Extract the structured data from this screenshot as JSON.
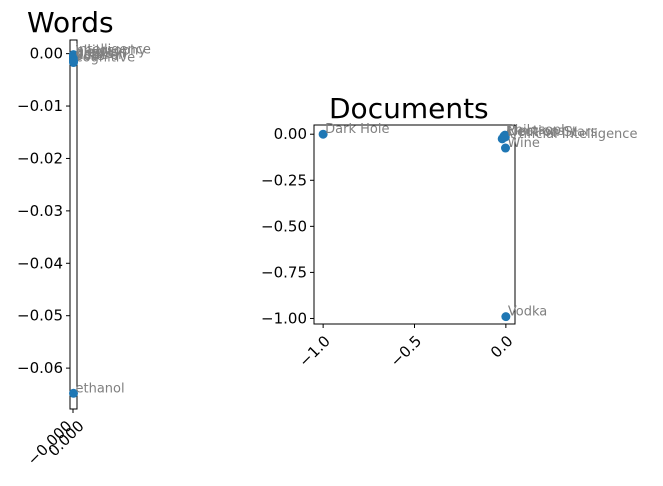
{
  "colors": {
    "marker": "#1f77b4",
    "annotation": "#808080"
  },
  "chart_data": [
    {
      "type": "scatter",
      "title": "Words",
      "xlim": [
        -0.0002,
        0.0002
      ],
      "ylim": [
        -0.0678,
        0.0026
      ],
      "xticks": [
        -0.0,
        0.0
      ],
      "xtick_labels": [
        "−0.000",
        "0.000"
      ],
      "yticks": [
        0.0,
        -0.01,
        -0.02,
        -0.03,
        -0.04,
        -0.05,
        -0.06
      ],
      "ytick_labels": [
        "0.00",
        "−0.01",
        "−0.02",
        "−0.03",
        "−0.04",
        "−0.05",
        "−0.06"
      ],
      "points": [
        {
          "label": "ethanol",
          "x": 0.0,
          "y": -0.0648
        },
        {
          "label": "cognitive",
          "x": 0.0,
          "y": -0.0017
        },
        {
          "label": "election",
          "x": 0.0,
          "y": -0.0006
        },
        {
          "label": "philosophy",
          "x": 0.0,
          "y": -0.0004
        },
        {
          "label": "intelligence",
          "x": 0.0,
          "y": -0.0002
        },
        {
          "label": "bottle",
          "x": 0.0,
          "y": -0.001
        },
        {
          "label": "neutron",
          "x": 0.0,
          "y": -0.0012
        },
        {
          "label": "gravity",
          "x": 0.0,
          "y": -0.0008
        },
        {
          "label": "vote",
          "x": 0.0,
          "y": -0.0014
        }
      ]
    },
    {
      "type": "scatter",
      "title": "Documents",
      "xlim": [
        -1.05,
        0.05
      ],
      "ylim": [
        -1.03,
        0.05
      ],
      "xticks": [
        -1.0,
        -0.5,
        0.0
      ],
      "xtick_labels": [
        "−1.0",
        "−0.5",
        "0.0"
      ],
      "yticks": [
        0.0,
        -0.25,
        -0.5,
        -0.75,
        -1.0
      ],
      "ytick_labels": [
        "0.00",
        "−0.25",
        "−0.50",
        "−0.75",
        "−1.00"
      ],
      "points": [
        {
          "label": "Dark Hole",
          "x": -1.0,
          "y": 0.0
        },
        {
          "label": "Vodka",
          "x": 0.0,
          "y": -0.99
        },
        {
          "label": "Wine",
          "x": -0.002,
          "y": -0.075
        },
        {
          "label": "Artificial Intelligence",
          "x": -0.02,
          "y": -0.025
        },
        {
          "label": "Elections",
          "x": -0.01,
          "y": -0.01
        },
        {
          "label": "Philosophy",
          "x": -0.005,
          "y": -0.005
        },
        {
          "label": "Neutron Stars",
          "x": -0.003,
          "y": -0.015
        }
      ]
    }
  ]
}
